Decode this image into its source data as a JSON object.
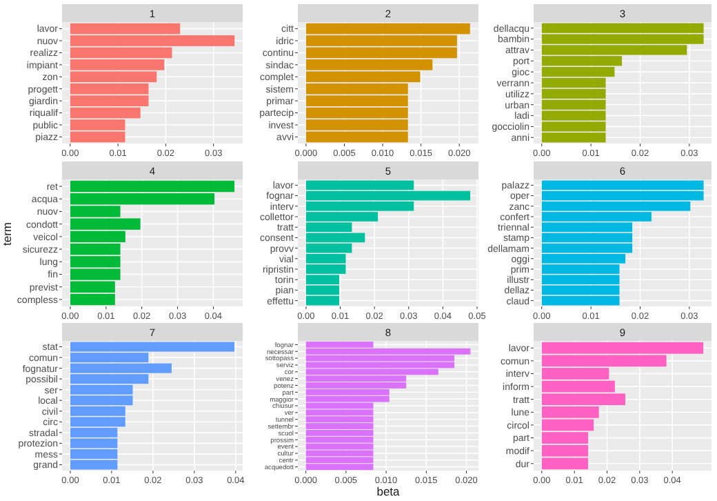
{
  "chart_data": [
    {
      "type": "bar",
      "orientation": "horizontal",
      "title": "1",
      "categories": [
        "lavor",
        "nuov",
        "realizz",
        "impiant",
        "zon",
        "progett",
        "giardin",
        "riqualif",
        "public",
        "piazz"
      ],
      "values": [
        0.023,
        0.0344,
        0.0213,
        0.0197,
        0.0181,
        0.0164,
        0.0164,
        0.0147,
        0.0115,
        0.0115
      ],
      "color": "#f8766d",
      "xlim": [
        -0.0017,
        0.0361
      ],
      "xticks": [
        {
          "value": 0,
          "label": "0.00"
        },
        {
          "value": 0.01,
          "label": "0.01"
        },
        {
          "value": 0.02,
          "label": "0.02"
        },
        {
          "value": 0.03,
          "label": "0.03"
        }
      ],
      "grid": true
    },
    {
      "type": "bar",
      "orientation": "horizontal",
      "title": "2",
      "categories": [
        "citt",
        "idric",
        "continu",
        "sindac",
        "complet",
        "sistem",
        "primar",
        "partecip",
        "invest",
        "avvi"
      ],
      "values": [
        0.0214,
        0.0197,
        0.0197,
        0.0165,
        0.0149,
        0.0133,
        0.0133,
        0.0133,
        0.0133,
        0.0133
      ],
      "color": "#d39200",
      "xlim": [
        -0.00107,
        0.0225
      ],
      "xticks": [
        {
          "value": 0,
          "label": "0.000"
        },
        {
          "value": 0.005,
          "label": "0.005"
        },
        {
          "value": 0.01,
          "label": "0.010"
        },
        {
          "value": 0.015,
          "label": "0.015"
        },
        {
          "value": 0.02,
          "label": "0.020"
        }
      ],
      "grid": true
    },
    {
      "type": "bar",
      "orientation": "horizontal",
      "title": "3",
      "categories": [
        "dellacqu",
        "bambin",
        "attrav",
        "port",
        "gioc",
        "verrann",
        "utilizz",
        "urban",
        "ladi",
        "gocciolin",
        "anni"
      ],
      "values": [
        0.0329,
        0.0329,
        0.0295,
        0.0163,
        0.0148,
        0.013,
        0.013,
        0.013,
        0.013,
        0.013,
        0.013
      ],
      "color": "#93aa00",
      "xlim": [
        -0.00165,
        0.0345
      ],
      "xticks": [
        {
          "value": 0,
          "label": "0.00"
        },
        {
          "value": 0.01,
          "label": "0.01"
        },
        {
          "value": 0.02,
          "label": "0.02"
        },
        {
          "value": 0.03,
          "label": "0.03"
        }
      ],
      "grid": true
    },
    {
      "type": "bar",
      "orientation": "horizontal",
      "title": "4",
      "ylabel": "term",
      "categories": [
        "ret",
        "acqua",
        "nuov",
        "condott",
        "veicol",
        "sicurezz",
        "lung",
        "fin",
        "previst",
        "compless"
      ],
      "values": [
        0.0459,
        0.0403,
        0.014,
        0.0196,
        0.0154,
        0.014,
        0.014,
        0.014,
        0.0125,
        0.0125
      ],
      "color": "#00ba38",
      "xlim": [
        -0.0023,
        0.0482
      ],
      "xticks": [
        {
          "value": 0,
          "label": "0.00"
        },
        {
          "value": 0.01,
          "label": "0.01"
        },
        {
          "value": 0.02,
          "label": "0.02"
        },
        {
          "value": 0.03,
          "label": "0.03"
        },
        {
          "value": 0.04,
          "label": "0.04"
        }
      ],
      "grid": true
    },
    {
      "type": "bar",
      "orientation": "horizontal",
      "title": "5",
      "categories": [
        "lavor",
        "fognar",
        "interv",
        "collettor",
        "tratt",
        "consent",
        "provv",
        "vial",
        "ripristin",
        "torin",
        "pian",
        "effettu"
      ],
      "values": [
        0.0315,
        0.048,
        0.0315,
        0.021,
        0.0134,
        0.0172,
        0.0134,
        0.0116,
        0.0116,
        0.0097,
        0.0097,
        0.0097
      ],
      "color": "#00c19f",
      "xlim": [
        -0.0024,
        0.0504
      ],
      "xticks": [
        {
          "value": 0,
          "label": "0.00"
        },
        {
          "value": 0.01,
          "label": "0.01"
        },
        {
          "value": 0.02,
          "label": "0.02"
        },
        {
          "value": 0.03,
          "label": "0.03"
        },
        {
          "value": 0.04,
          "label": "0.04"
        },
        {
          "value": 0.05,
          "label": "0.05"
        }
      ],
      "grid": true
    },
    {
      "type": "bar",
      "orientation": "horizontal",
      "title": "6",
      "categories": [
        "palazz",
        "oper",
        "zanc",
        "confert",
        "triennal",
        "stamp",
        "dellamam",
        "oggi",
        "prim",
        "illustr",
        "dellaz",
        "claud"
      ],
      "values": [
        0.0329,
        0.0329,
        0.0302,
        0.0223,
        0.0184,
        0.0184,
        0.0184,
        0.017,
        0.0158,
        0.0158,
        0.0158,
        0.0158
      ],
      "color": "#00b9e3",
      "xlim": [
        -0.00165,
        0.0345
      ],
      "xticks": [
        {
          "value": 0,
          "label": "0.00"
        },
        {
          "value": 0.01,
          "label": "0.01"
        },
        {
          "value": 0.02,
          "label": "0.02"
        },
        {
          "value": 0.03,
          "label": "0.03"
        }
      ],
      "grid": true
    },
    {
      "type": "bar",
      "orientation": "horizontal",
      "title": "7",
      "categories": [
        "stat",
        "comun",
        "fognatur",
        "possibil",
        "ser",
        "local",
        "civil",
        "circ",
        "stradal",
        "protezion",
        "mess",
        "grand"
      ],
      "values": [
        0.0397,
        0.0189,
        0.0245,
        0.0189,
        0.0151,
        0.0151,
        0.0133,
        0.0133,
        0.0114,
        0.0114,
        0.0114,
        0.0114
      ],
      "color": "#619cff",
      "xlim": [
        -0.002,
        0.0417
      ],
      "xticks": [
        {
          "value": 0,
          "label": "0.00"
        },
        {
          "value": 0.01,
          "label": "0.01"
        },
        {
          "value": 0.02,
          "label": "0.02"
        },
        {
          "value": 0.03,
          "label": "0.03"
        },
        {
          "value": 0.04,
          "label": "0.04"
        }
      ],
      "grid": true
    },
    {
      "type": "bar",
      "orientation": "horizontal",
      "title": "8",
      "xlabel": "beta",
      "categories": [
        "fognar",
        "necessar",
        "sottopass",
        "serviz",
        "cor",
        "venez",
        "potenz",
        "part",
        "maggior",
        "chiusur",
        "ver",
        "tunnel",
        "settembr",
        "scuol",
        "prossim",
        "event",
        "cultur",
        "centr",
        "acquedott"
      ],
      "values": [
        0.0084,
        0.0205,
        0.0185,
        0.0185,
        0.0165,
        0.0125,
        0.0125,
        0.0104,
        0.0104,
        0.0084,
        0.0084,
        0.0084,
        0.0084,
        0.0084,
        0.0084,
        0.0084,
        0.0084,
        0.0084,
        0.0084
      ],
      "color": "#db72fb",
      "xlim": [
        -0.001,
        0.0215
      ],
      "xticks": [
        {
          "value": 0,
          "label": "0.000"
        },
        {
          "value": 0.005,
          "label": "0.005"
        },
        {
          "value": 0.01,
          "label": "0.010"
        },
        {
          "value": 0.015,
          "label": "0.015"
        },
        {
          "value": 0.02,
          "label": "0.020"
        }
      ],
      "grid": true
    },
    {
      "type": "bar",
      "orientation": "horizontal",
      "title": "9",
      "categories": [
        "lavor",
        "comun",
        "interv",
        "inform",
        "tratt",
        "lune",
        "circol",
        "part",
        "modif",
        "dur"
      ],
      "values": [
        0.0495,
        0.0382,
        0.0206,
        0.0224,
        0.0256,
        0.0175,
        0.0159,
        0.0142,
        0.0142,
        0.0142
      ],
      "color": "#ff61c3",
      "xlim": [
        -0.0025,
        0.052
      ],
      "xticks": [
        {
          "value": 0,
          "label": "0.00"
        },
        {
          "value": 0.01,
          "label": "0.01"
        },
        {
          "value": 0.02,
          "label": "0.02"
        },
        {
          "value": 0.03,
          "label": "0.03"
        },
        {
          "value": 0.04,
          "label": "0.04"
        }
      ],
      "grid": true
    }
  ]
}
